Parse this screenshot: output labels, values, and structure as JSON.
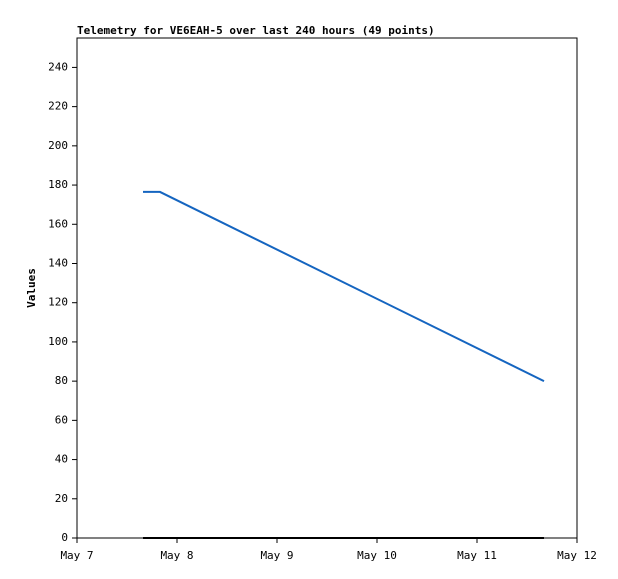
{
  "chart_data": {
    "type": "line",
    "title": "Telemetry for VE6EAH-5 over last 240 hours (49 points)",
    "y_label": "Values",
    "xlim": [
      7,
      12
    ],
    "xticks": [
      {
        "value": 7,
        "label": "May 7"
      },
      {
        "value": 8,
        "label": "May 8"
      },
      {
        "value": 9,
        "label": "May 9"
      },
      {
        "value": 10,
        "label": "May 10"
      },
      {
        "value": 11,
        "label": "May 11"
      },
      {
        "value": 12,
        "label": "May 12"
      }
    ],
    "ylim": [
      0,
      255
    ],
    "yticks": [
      0,
      20,
      40,
      60,
      80,
      100,
      120,
      140,
      160,
      180,
      200,
      220,
      240
    ],
    "series": [
      {
        "color": "#1565c0",
        "x": [
          7.66,
          7.83,
          11.67
        ],
        "values": [
          176.5,
          176.5,
          80
        ]
      },
      {
        "color": "#000000",
        "x": [
          7.66,
          11.67
        ],
        "values": [
          0,
          0
        ]
      }
    ]
  }
}
